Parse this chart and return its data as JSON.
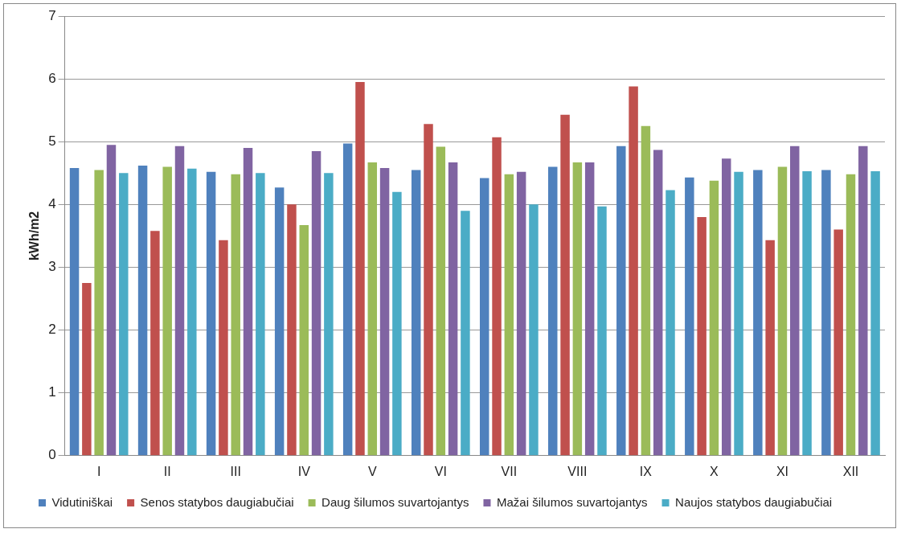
{
  "chart_data": {
    "type": "bar",
    "ylabel": "kWh/m2",
    "categories": [
      "I",
      "II",
      "III",
      "IV",
      "V",
      "VI",
      "VII",
      "VIII",
      "IX",
      "X",
      "XI",
      "XII"
    ],
    "series": [
      {
        "name": "Vidutiniškai",
        "color": "#4f81bd",
        "values": [
          4.58,
          4.62,
          4.52,
          4.27,
          4.97,
          4.55,
          4.42,
          4.6,
          4.93,
          4.43,
          4.55,
          4.55
        ]
      },
      {
        "name": "Senos statybos daugiabučiai",
        "color": "#c0504d",
        "values": [
          2.75,
          3.58,
          3.43,
          4.0,
          5.95,
          5.28,
          5.07,
          5.43,
          5.88,
          3.8,
          3.43,
          3.6
        ]
      },
      {
        "name": "Daug šilumos suvartojantys",
        "color": "#9bbb59",
        "values": [
          4.55,
          4.6,
          4.48,
          3.67,
          4.67,
          4.92,
          4.48,
          4.67,
          5.25,
          4.38,
          4.6,
          4.48
        ]
      },
      {
        "name": "Mažai šilumos suvartojantys",
        "color": "#8064a2",
        "values": [
          4.95,
          4.93,
          4.9,
          4.85,
          4.58,
          4.67,
          4.52,
          4.67,
          4.87,
          4.73,
          4.93,
          4.93
        ]
      },
      {
        "name": "Naujos statybos daugiabučiai",
        "color": "#4bacc6",
        "values": [
          4.5,
          4.57,
          4.5,
          4.5,
          4.2,
          3.9,
          4.0,
          3.97,
          4.23,
          4.52,
          4.53,
          4.53
        ]
      }
    ],
    "ylim": [
      0,
      7
    ],
    "yticks": [
      0,
      1,
      2,
      3,
      4,
      5,
      6,
      7
    ],
    "grid": "y",
    "legend": "bottom"
  }
}
